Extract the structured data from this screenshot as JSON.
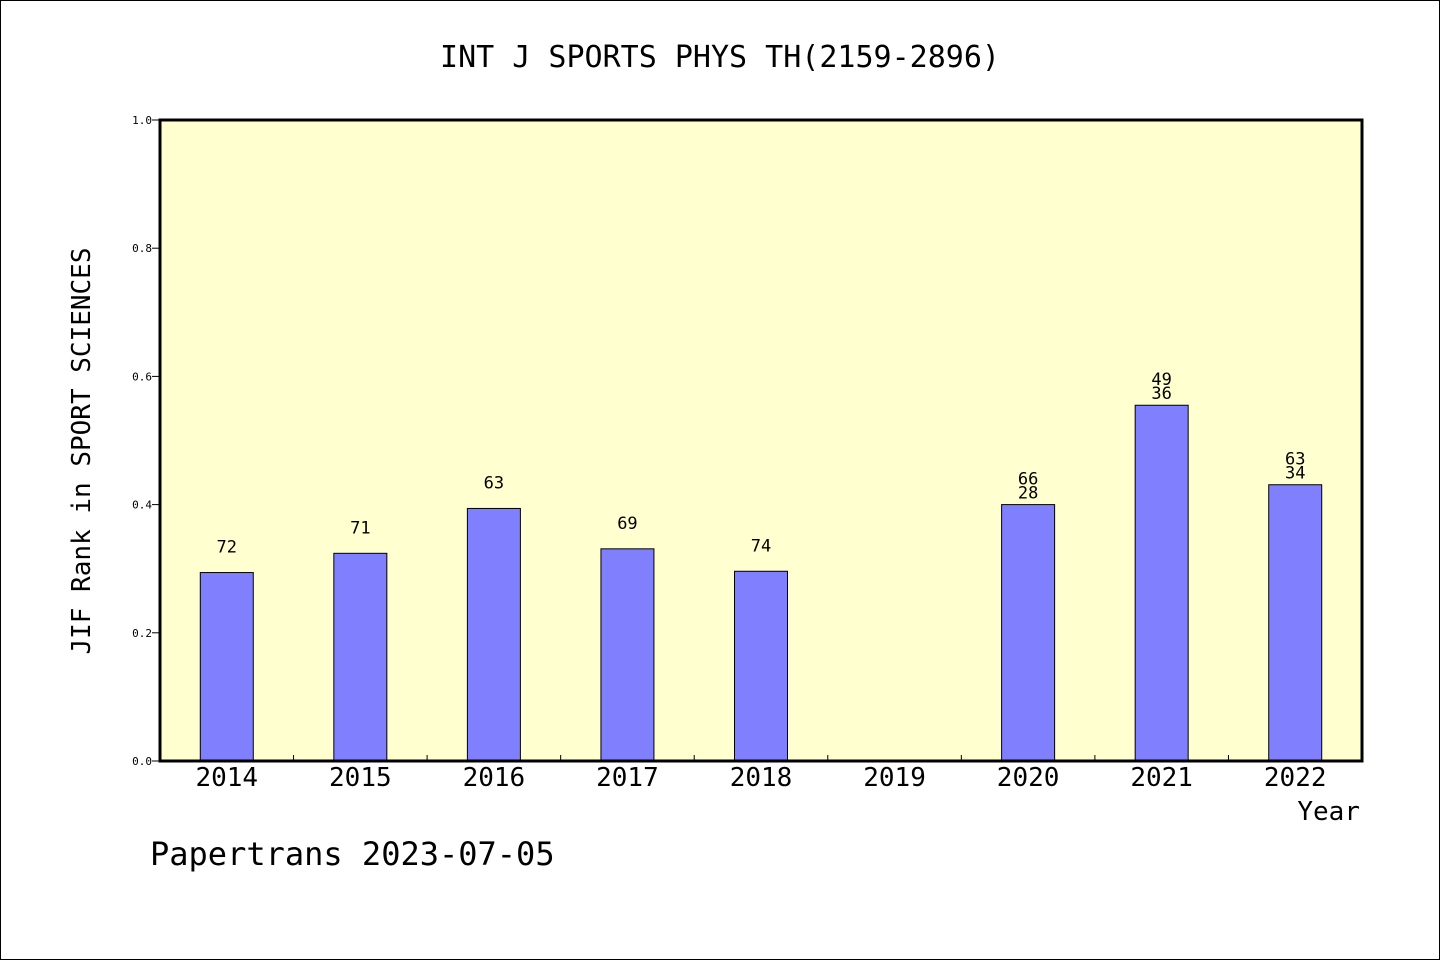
{
  "chart_data": {
    "type": "bar",
    "title": "INT J SPORTS PHYS TH(2159-2896)",
    "xlabel": "Year",
    "ylabel": "JIF Rank in SPORT SCIENCES",
    "ylim": [
      0,
      1.0
    ],
    "yticks": [
      "0.0",
      "0.2",
      "0.4",
      "0.6",
      "0.8",
      "1.0"
    ],
    "categories": [
      "2014",
      "2015",
      "2016",
      "2017",
      "2018",
      "2019",
      "2020",
      "2021",
      "2022"
    ],
    "values": [
      0.294,
      0.324,
      0.394,
      0.331,
      0.296,
      null,
      0.4,
      0.555,
      0.431
    ],
    "labels": [
      [
        "72"
      ],
      [
        "71"
      ],
      [
        "63"
      ],
      [
        "69"
      ],
      [
        "74"
      ],
      [],
      [
        "66",
        "28"
      ],
      [
        "49",
        "36"
      ],
      [
        "63",
        "34"
      ]
    ],
    "bar_color": "#8080ff",
    "plot_background": "#ffffd0",
    "grid": false,
    "legend": "none"
  },
  "footer": "Papertrans 2023-07-05"
}
